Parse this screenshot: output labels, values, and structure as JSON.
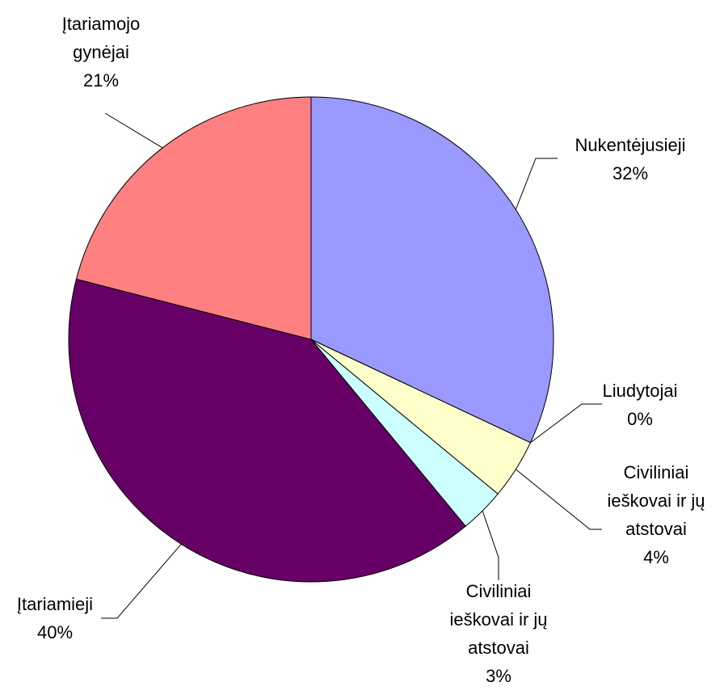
{
  "chart_data": {
    "type": "pie",
    "categories": [
      "Nukentėjusieji",
      "Liudytojai",
      "Civiliniai ieškovai ir jų atstovai",
      "Civiliniai ieškovai ir jų atstovai",
      "Įtariamieji",
      "Įtariamojo gynėjai"
    ],
    "values": [
      32,
      0,
      4,
      3,
      40,
      21
    ],
    "value_labels": [
      "32%",
      "0%",
      "4%",
      "3%",
      "40%",
      "21%"
    ],
    "colors": [
      "#9999ff",
      "#993366",
      "#ffffcc",
      "#ccffff",
      "#660066",
      "#ff8080"
    ]
  }
}
